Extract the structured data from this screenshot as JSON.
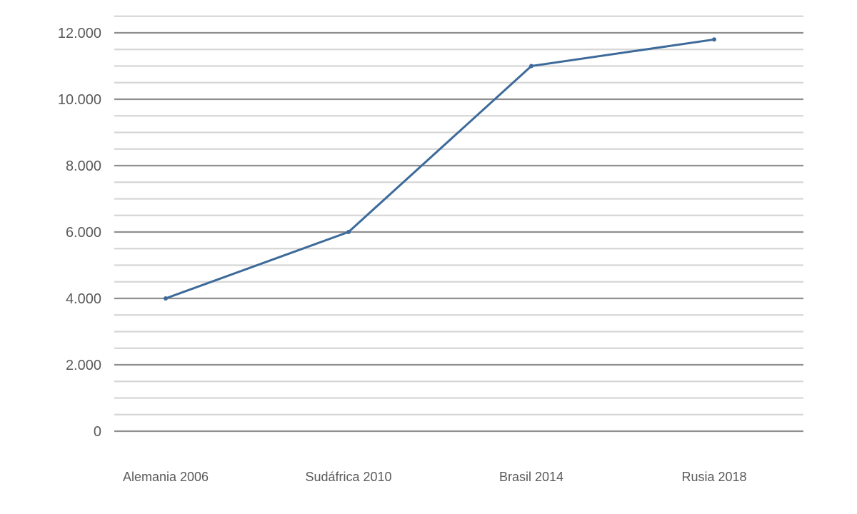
{
  "chart_data": {
    "type": "line",
    "title": "",
    "xlabel": "",
    "ylabel": "",
    "categories": [
      "Alemania 2006",
      "Sudáfrica 2010",
      "Brasil 2014",
      "Rusia 2018"
    ],
    "series": [
      {
        "values": [
          4000,
          6000,
          11000,
          11800
        ]
      }
    ],
    "ylim": [
      0,
      12000
    ],
    "y_ticks": [
      0,
      2000,
      4000,
      6000,
      8000,
      10000,
      12000
    ],
    "y_tick_labels": [
      "0",
      "2.000",
      "4.000",
      "6.000",
      "8.000",
      "10.000",
      "12.000"
    ],
    "minor_grid_step": 500,
    "grid": true,
    "legend": "none",
    "colors": {
      "series": "#3d6a9a",
      "major_grid": "#8f8f8f",
      "minor_grid": "#d6d6d6",
      "text": "#5a5a5a"
    }
  }
}
